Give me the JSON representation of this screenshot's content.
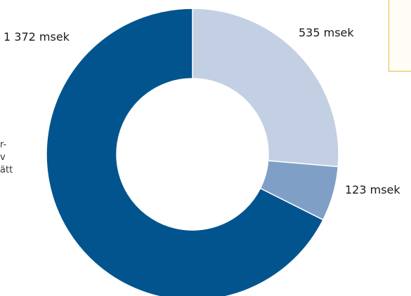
{
  "chart_data": {
    "type": "pie",
    "donut": true,
    "title": "",
    "slices": [
      {
        "label": "535 msek",
        "value": 535,
        "color": "#c3cfe2"
      },
      {
        "label": "123 msek",
        "value": 123,
        "color": "#7f9fc7"
      },
      {
        "label": "1 372 msek",
        "value": 1372,
        "color": "#02548f"
      }
    ],
    "start": "12 o'clock",
    "direction": "clockwise",
    "side_text": [
      "r-",
      "v",
      "ätt"
    ]
  },
  "colors": {
    "callout_border": "#e9b949",
    "callout_fill": "#fffdf6"
  }
}
